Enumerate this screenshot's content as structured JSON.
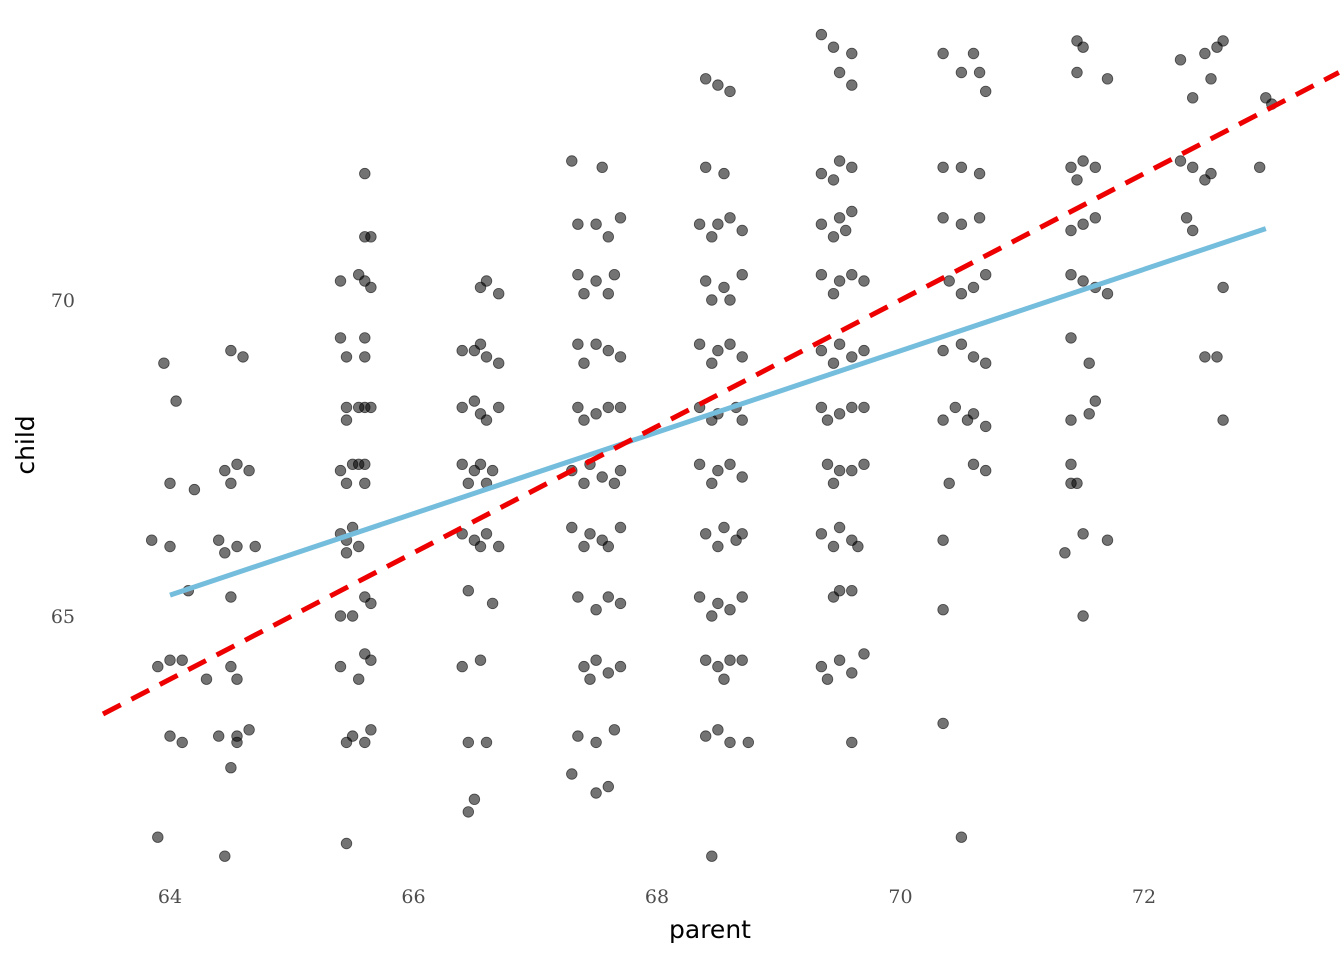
{
  "chart_data": {
    "type": "scatter",
    "title": "",
    "xlabel": "parent",
    "ylabel": "child",
    "xlim": [
      63.4,
      73.6
    ],
    "ylim": [
      61.2,
      74.3
    ],
    "xticks": [
      64,
      66,
      68,
      70,
      72
    ],
    "yticks": [
      65,
      70
    ],
    "xtick_labels": [
      "64",
      "66",
      "68",
      "70",
      "72"
    ],
    "ytick_labels": [
      "65",
      "70"
    ],
    "grid": false,
    "point_color": "#000000",
    "point_opacity": 0.55,
    "jittered": true,
    "parent_levels": [
      64,
      64.5,
      65.5,
      66.5,
      67.5,
      68.5,
      69.5,
      70.5,
      71.5,
      72.5,
      73
    ],
    "points": [
      [
        63.95,
        69.0
      ],
      [
        64.05,
        68.4
      ],
      [
        64.0,
        67.1
      ],
      [
        64.2,
        67.0
      ],
      [
        63.85,
        66.2
      ],
      [
        64.0,
        66.1
      ],
      [
        64.15,
        65.4
      ],
      [
        63.9,
        64.2
      ],
      [
        64.0,
        64.3
      ],
      [
        64.1,
        64.3
      ],
      [
        64.3,
        64.0
      ],
      [
        64.0,
        63.1
      ],
      [
        64.1,
        63.0
      ],
      [
        63.9,
        61.5
      ],
      [
        64.5,
        69.2
      ],
      [
        64.6,
        69.1
      ],
      [
        64.45,
        67.3
      ],
      [
        64.55,
        67.4
      ],
      [
        64.65,
        67.3
      ],
      [
        64.5,
        67.1
      ],
      [
        64.4,
        66.2
      ],
      [
        64.45,
        66.0
      ],
      [
        64.55,
        66.1
      ],
      [
        64.7,
        66.1
      ],
      [
        64.5,
        65.3
      ],
      [
        64.5,
        64.2
      ],
      [
        64.55,
        64.0
      ],
      [
        64.4,
        63.1
      ],
      [
        64.55,
        63.0
      ],
      [
        64.55,
        63.1
      ],
      [
        64.65,
        63.2
      ],
      [
        64.5,
        62.6
      ],
      [
        64.45,
        61.2
      ],
      [
        65.6,
        72.0
      ],
      [
        65.6,
        71.0
      ],
      [
        65.65,
        71.0
      ],
      [
        65.4,
        70.3
      ],
      [
        65.55,
        70.4
      ],
      [
        65.65,
        70.2
      ],
      [
        65.6,
        70.3
      ],
      [
        65.4,
        69.4
      ],
      [
        65.6,
        69.4
      ],
      [
        65.45,
        69.1
      ],
      [
        65.6,
        69.1
      ],
      [
        65.45,
        68.1
      ],
      [
        65.45,
        68.3
      ],
      [
        65.55,
        68.3
      ],
      [
        65.6,
        68.3
      ],
      [
        65.65,
        68.3
      ],
      [
        65.4,
        67.3
      ],
      [
        65.5,
        67.4
      ],
      [
        65.55,
        67.4
      ],
      [
        65.6,
        67.4
      ],
      [
        65.6,
        67.1
      ],
      [
        65.45,
        67.1
      ],
      [
        65.4,
        66.3
      ],
      [
        65.5,
        66.4
      ],
      [
        65.45,
        66.2
      ],
      [
        65.55,
        66.1
      ],
      [
        65.45,
        66.0
      ],
      [
        65.6,
        65.3
      ],
      [
        65.65,
        65.2
      ],
      [
        65.5,
        65.0
      ],
      [
        65.4,
        65.0
      ],
      [
        65.4,
        64.2
      ],
      [
        65.55,
        64.0
      ],
      [
        65.6,
        64.4
      ],
      [
        65.65,
        64.3
      ],
      [
        65.45,
        63.0
      ],
      [
        65.5,
        63.1
      ],
      [
        65.6,
        63.0
      ],
      [
        65.65,
        63.2
      ],
      [
        65.45,
        61.4
      ],
      [
        66.6,
        70.3
      ],
      [
        66.55,
        70.2
      ],
      [
        66.7,
        70.1
      ],
      [
        66.4,
        69.2
      ],
      [
        66.5,
        69.2
      ],
      [
        66.55,
        69.3
      ],
      [
        66.6,
        69.1
      ],
      [
        66.7,
        69.0
      ],
      [
        66.4,
        68.3
      ],
      [
        66.5,
        68.4
      ],
      [
        66.55,
        68.2
      ],
      [
        66.6,
        68.1
      ],
      [
        66.7,
        68.3
      ],
      [
        66.4,
        67.4
      ],
      [
        66.5,
        67.3
      ],
      [
        66.55,
        67.4
      ],
      [
        66.65,
        67.3
      ],
      [
        66.6,
        67.1
      ],
      [
        66.45,
        67.1
      ],
      [
        66.4,
        66.3
      ],
      [
        66.5,
        66.2
      ],
      [
        66.6,
        66.3
      ],
      [
        66.7,
        66.1
      ],
      [
        66.55,
        66.1
      ],
      [
        66.45,
        65.4
      ],
      [
        66.65,
        65.2
      ],
      [
        66.4,
        64.2
      ],
      [
        66.55,
        64.3
      ],
      [
        66.45,
        63.0
      ],
      [
        66.6,
        63.0
      ],
      [
        66.5,
        62.1
      ],
      [
        66.45,
        61.9
      ],
      [
        67.3,
        72.2
      ],
      [
        67.55,
        72.1
      ],
      [
        67.35,
        71.2
      ],
      [
        67.5,
        71.2
      ],
      [
        67.6,
        71.0
      ],
      [
        67.7,
        71.3
      ],
      [
        67.35,
        70.4
      ],
      [
        67.5,
        70.3
      ],
      [
        67.65,
        70.4
      ],
      [
        67.4,
        70.1
      ],
      [
        67.6,
        70.1
      ],
      [
        67.35,
        69.3
      ],
      [
        67.5,
        69.3
      ],
      [
        67.6,
        69.2
      ],
      [
        67.7,
        69.1
      ],
      [
        67.4,
        69.0
      ],
      [
        67.35,
        68.3
      ],
      [
        67.5,
        68.2
      ],
      [
        67.6,
        68.3
      ],
      [
        67.7,
        68.3
      ],
      [
        67.4,
        68.1
      ],
      [
        67.3,
        67.3
      ],
      [
        67.45,
        67.4
      ],
      [
        67.55,
        67.2
      ],
      [
        67.65,
        67.1
      ],
      [
        67.7,
        67.3
      ],
      [
        67.4,
        67.1
      ],
      [
        67.3,
        66.4
      ],
      [
        67.45,
        66.3
      ],
      [
        67.55,
        66.2
      ],
      [
        67.7,
        66.4
      ],
      [
        67.4,
        66.1
      ],
      [
        67.6,
        66.1
      ],
      [
        67.35,
        65.3
      ],
      [
        67.5,
        65.1
      ],
      [
        67.6,
        65.3
      ],
      [
        67.7,
        65.2
      ],
      [
        67.4,
        64.2
      ],
      [
        67.5,
        64.3
      ],
      [
        67.6,
        64.1
      ],
      [
        67.7,
        64.2
      ],
      [
        67.45,
        64.0
      ],
      [
        67.35,
        63.1
      ],
      [
        67.65,
        63.2
      ],
      [
        67.5,
        63.0
      ],
      [
        67.3,
        62.5
      ],
      [
        67.5,
        62.2
      ],
      [
        67.6,
        62.3
      ],
      [
        68.4,
        73.5
      ],
      [
        68.5,
        73.4
      ],
      [
        68.6,
        73.3
      ],
      [
        68.4,
        72.1
      ],
      [
        68.55,
        72.0
      ],
      [
        68.35,
        71.2
      ],
      [
        68.5,
        71.2
      ],
      [
        68.6,
        71.3
      ],
      [
        68.7,
        71.1
      ],
      [
        68.45,
        71.0
      ],
      [
        68.4,
        70.3
      ],
      [
        68.55,
        70.2
      ],
      [
        68.7,
        70.4
      ],
      [
        68.45,
        70.0
      ],
      [
        68.6,
        70.0
      ],
      [
        68.35,
        69.3
      ],
      [
        68.5,
        69.2
      ],
      [
        68.6,
        69.3
      ],
      [
        68.7,
        69.1
      ],
      [
        68.45,
        69.0
      ],
      [
        68.35,
        68.3
      ],
      [
        68.5,
        68.2
      ],
      [
        68.65,
        68.3
      ],
      [
        68.7,
        68.1
      ],
      [
        68.45,
        68.1
      ],
      [
        68.35,
        67.4
      ],
      [
        68.5,
        67.3
      ],
      [
        68.6,
        67.4
      ],
      [
        68.7,
        67.2
      ],
      [
        68.45,
        67.1
      ],
      [
        68.4,
        66.3
      ],
      [
        68.55,
        66.4
      ],
      [
        68.65,
        66.2
      ],
      [
        68.7,
        66.3
      ],
      [
        68.5,
        66.1
      ],
      [
        68.35,
        65.3
      ],
      [
        68.5,
        65.2
      ],
      [
        68.6,
        65.1
      ],
      [
        68.7,
        65.3
      ],
      [
        68.45,
        65.0
      ],
      [
        68.4,
        64.3
      ],
      [
        68.5,
        64.2
      ],
      [
        68.6,
        64.3
      ],
      [
        68.7,
        64.3
      ],
      [
        68.55,
        64.0
      ],
      [
        68.4,
        63.1
      ],
      [
        68.5,
        63.2
      ],
      [
        68.6,
        63.0
      ],
      [
        68.75,
        63.0
      ],
      [
        68.45,
        61.2
      ],
      [
        69.35,
        74.2
      ],
      [
        69.45,
        74.0
      ],
      [
        69.6,
        73.9
      ],
      [
        69.5,
        73.6
      ],
      [
        69.6,
        73.4
      ],
      [
        69.35,
        72.0
      ],
      [
        69.5,
        72.2
      ],
      [
        69.6,
        72.1
      ],
      [
        69.45,
        71.9
      ],
      [
        69.35,
        71.2
      ],
      [
        69.5,
        71.3
      ],
      [
        69.6,
        71.4
      ],
      [
        69.45,
        71.0
      ],
      [
        69.55,
        71.1
      ],
      [
        69.35,
        70.4
      ],
      [
        69.5,
        70.3
      ],
      [
        69.6,
        70.4
      ],
      [
        69.45,
        70.1
      ],
      [
        69.7,
        70.3
      ],
      [
        69.35,
        69.2
      ],
      [
        69.5,
        69.3
      ],
      [
        69.6,
        69.1
      ],
      [
        69.7,
        69.2
      ],
      [
        69.45,
        69.0
      ],
      [
        69.35,
        68.3
      ],
      [
        69.5,
        68.2
      ],
      [
        69.6,
        68.3
      ],
      [
        69.7,
        68.3
      ],
      [
        69.4,
        68.1
      ],
      [
        69.4,
        67.4
      ],
      [
        69.5,
        67.3
      ],
      [
        69.6,
        67.3
      ],
      [
        69.7,
        67.4
      ],
      [
        69.45,
        67.1
      ],
      [
        69.35,
        66.3
      ],
      [
        69.5,
        66.4
      ],
      [
        69.6,
        66.2
      ],
      [
        69.65,
        66.1
      ],
      [
        69.45,
        66.1
      ],
      [
        69.45,
        65.3
      ],
      [
        69.6,
        65.4
      ],
      [
        69.5,
        65.4
      ],
      [
        69.35,
        64.2
      ],
      [
        69.5,
        64.3
      ],
      [
        69.6,
        64.1
      ],
      [
        69.7,
        64.4
      ],
      [
        69.4,
        64.0
      ],
      [
        69.6,
        63.0
      ],
      [
        70.35,
        73.9
      ],
      [
        70.5,
        73.6
      ],
      [
        70.6,
        73.9
      ],
      [
        70.65,
        73.6
      ],
      [
        70.7,
        73.3
      ],
      [
        70.35,
        72.1
      ],
      [
        70.5,
        72.1
      ],
      [
        70.65,
        72.0
      ],
      [
        70.35,
        71.3
      ],
      [
        70.5,
        71.2
      ],
      [
        70.65,
        71.3
      ],
      [
        70.4,
        70.3
      ],
      [
        70.5,
        70.1
      ],
      [
        70.6,
        70.2
      ],
      [
        70.7,
        70.4
      ],
      [
        70.35,
        69.2
      ],
      [
        70.5,
        69.3
      ],
      [
        70.6,
        69.1
      ],
      [
        70.7,
        69.0
      ],
      [
        70.35,
        68.1
      ],
      [
        70.45,
        68.3
      ],
      [
        70.55,
        68.1
      ],
      [
        70.6,
        68.2
      ],
      [
        70.7,
        68.0
      ],
      [
        70.6,
        67.4
      ],
      [
        70.7,
        67.3
      ],
      [
        70.4,
        67.1
      ],
      [
        70.35,
        66.2
      ],
      [
        70.35,
        65.1
      ],
      [
        70.35,
        63.3
      ],
      [
        70.5,
        61.5
      ],
      [
        71.45,
        74.1
      ],
      [
        71.5,
        74.0
      ],
      [
        71.45,
        73.6
      ],
      [
        71.7,
        73.5
      ],
      [
        71.4,
        72.1
      ],
      [
        71.5,
        72.2
      ],
      [
        71.6,
        72.1
      ],
      [
        71.45,
        71.9
      ],
      [
        71.4,
        71.1
      ],
      [
        71.5,
        71.2
      ],
      [
        71.6,
        71.3
      ],
      [
        71.4,
        70.4
      ],
      [
        71.5,
        70.3
      ],
      [
        71.6,
        70.2
      ],
      [
        71.7,
        70.1
      ],
      [
        71.4,
        69.4
      ],
      [
        71.55,
        69.0
      ],
      [
        71.4,
        68.1
      ],
      [
        71.55,
        68.2
      ],
      [
        71.6,
        68.4
      ],
      [
        71.4,
        67.4
      ],
      [
        71.45,
        67.1
      ],
      [
        71.4,
        67.1
      ],
      [
        71.35,
        66.0
      ],
      [
        71.5,
        66.3
      ],
      [
        71.7,
        66.2
      ],
      [
        71.5,
        65.0
      ],
      [
        72.3,
        73.8
      ],
      [
        72.5,
        73.9
      ],
      [
        72.6,
        74.0
      ],
      [
        72.65,
        74.1
      ],
      [
        72.4,
        73.2
      ],
      [
        72.55,
        73.5
      ],
      [
        72.3,
        72.2
      ],
      [
        72.4,
        72.1
      ],
      [
        72.55,
        72.0
      ],
      [
        72.5,
        71.9
      ],
      [
        72.35,
        71.3
      ],
      [
        72.4,
        71.1
      ],
      [
        72.65,
        70.2
      ],
      [
        72.5,
        69.1
      ],
      [
        72.6,
        69.1
      ],
      [
        72.65,
        68.1
      ],
      [
        73.0,
        73.2
      ],
      [
        73.05,
        73.1
      ],
      [
        72.95,
        72.1
      ]
    ],
    "series": [
      {
        "style": "solid",
        "color": "#74BDDC",
        "x": [
          64.0,
          73.0
        ],
        "y": [
          65.33,
          71.13
        ]
      },
      {
        "style": "dashed",
        "color": "#EE0000",
        "x": [
          63.45,
          73.6
        ],
        "y": [
          63.45,
          73.6
        ]
      }
    ]
  }
}
